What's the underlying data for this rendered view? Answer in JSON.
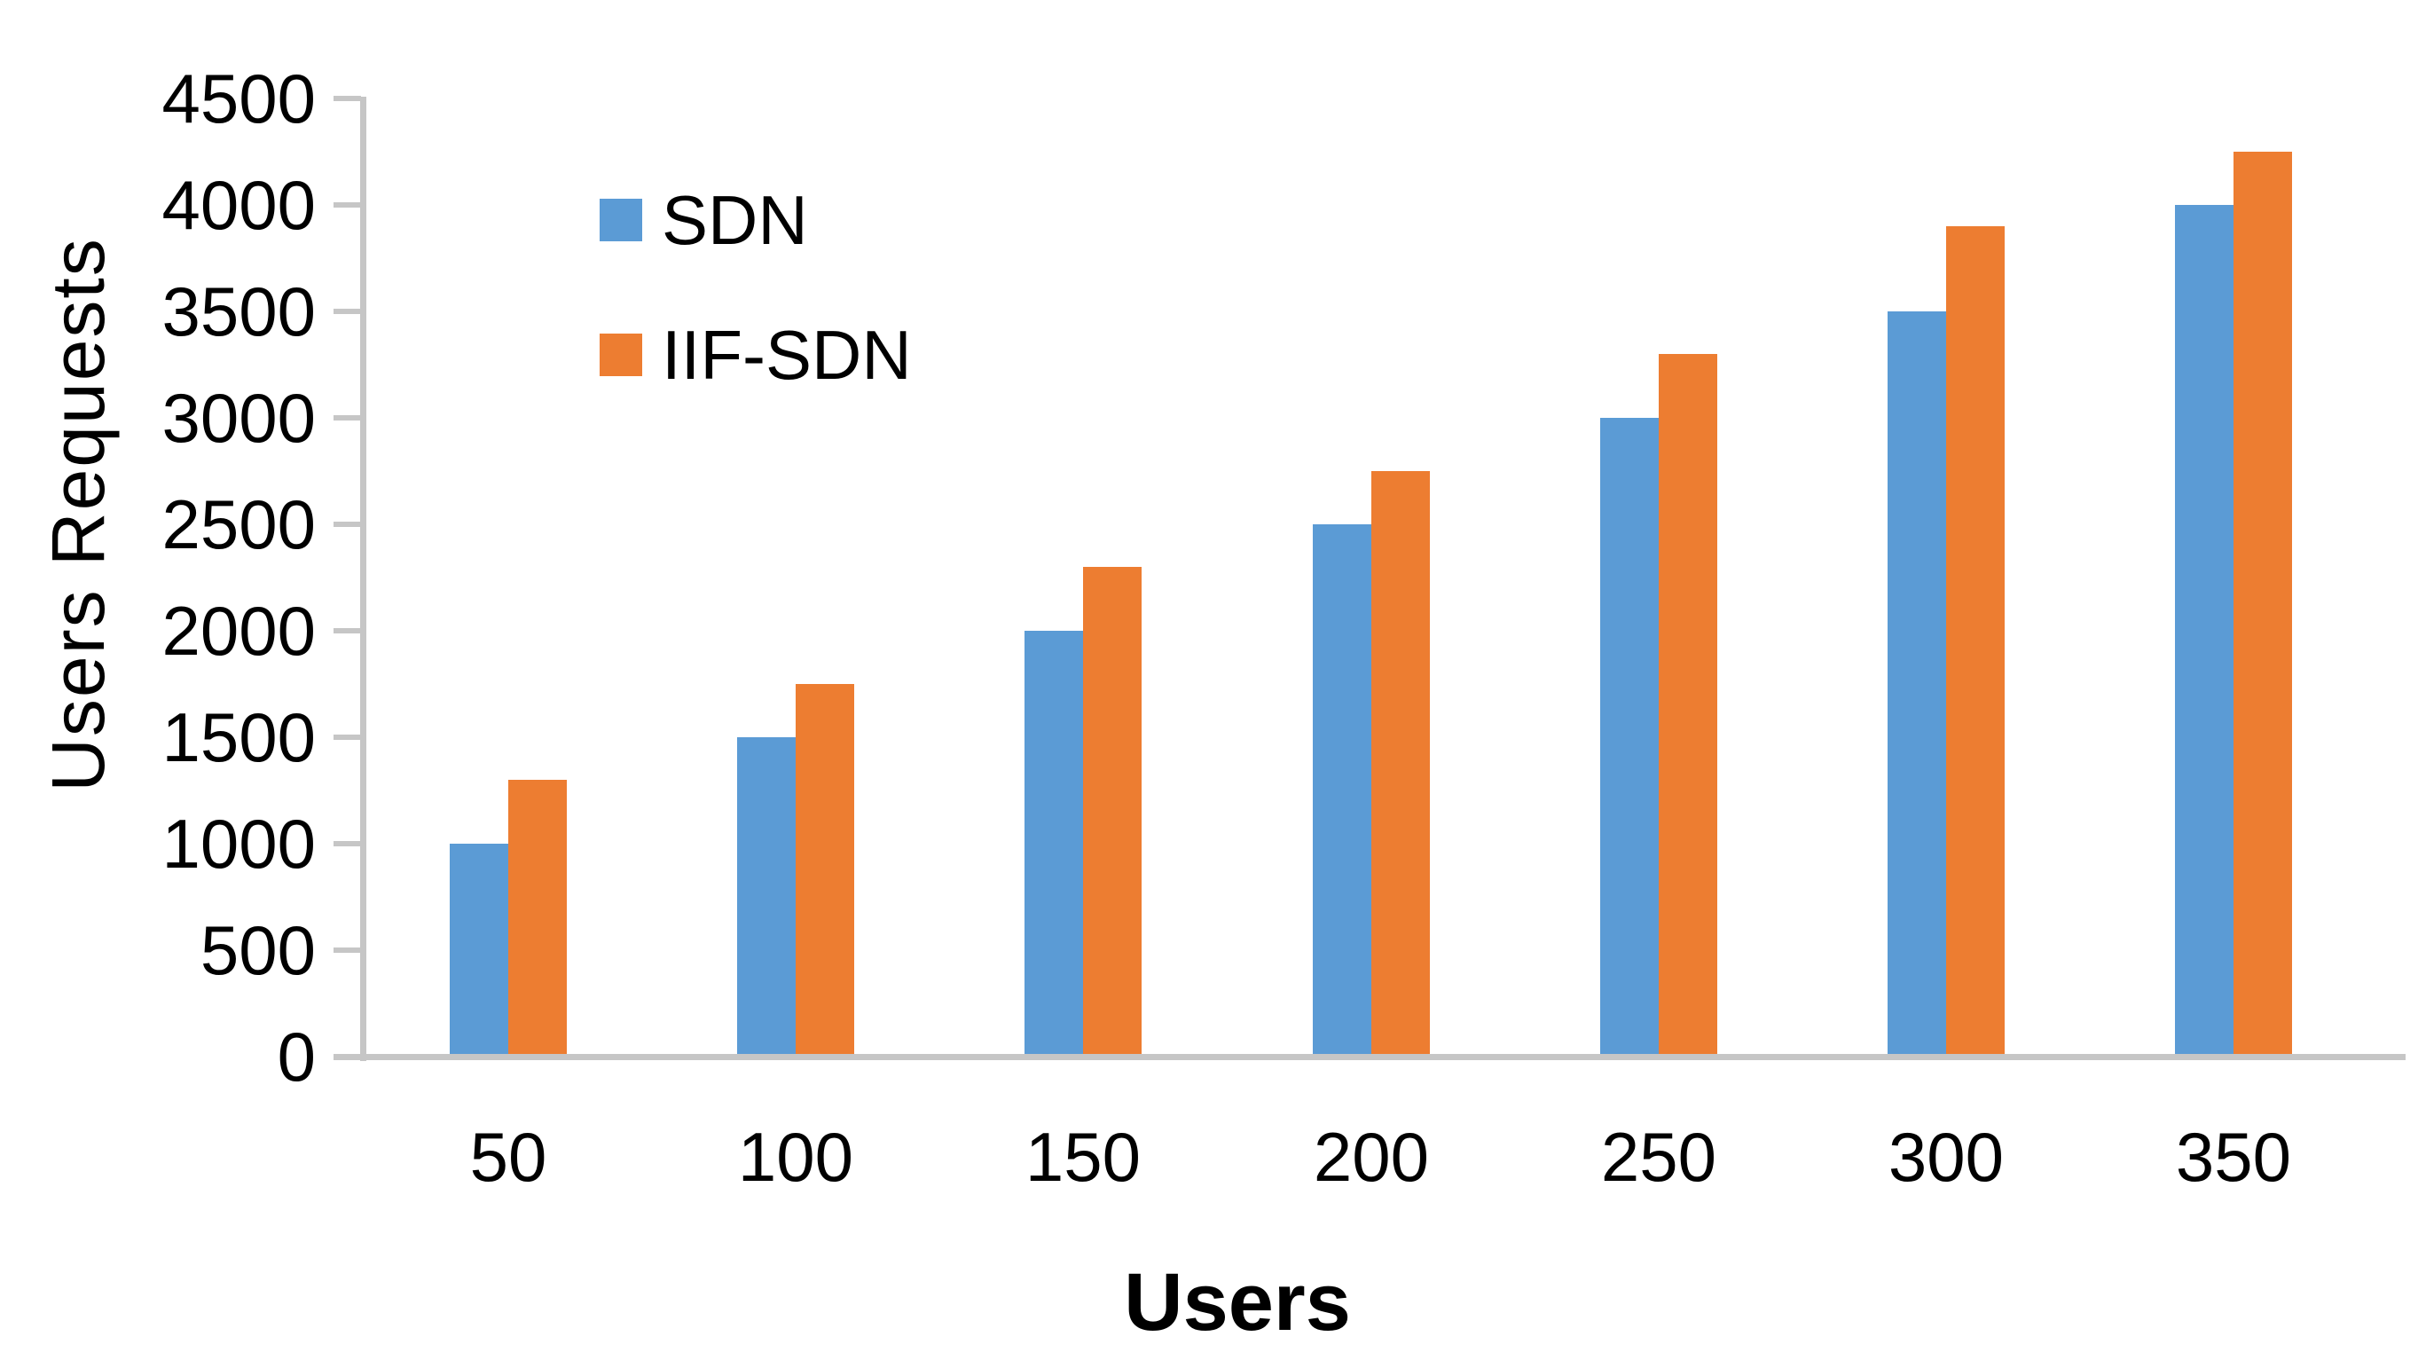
{
  "chart_data": {
    "type": "bar",
    "categories": [
      "50",
      "100",
      "150",
      "200",
      "250",
      "300",
      "350"
    ],
    "series": [
      {
        "name": "SDN",
        "color": "#5B9BD5",
        "values": [
          1000,
          1500,
          2000,
          2500,
          3000,
          3500,
          4000
        ]
      },
      {
        "name": "IIF-SDN",
        "color": "#ED7D31",
        "values": [
          1300,
          1750,
          2300,
          2750,
          3300,
          3900,
          4250
        ]
      }
    ],
    "title": "",
    "xlabel": "Users",
    "ylabel": "Users Requests",
    "ylim": [
      0,
      4500
    ],
    "ytick_step": 500,
    "ytick_labels": [
      "0",
      "500",
      "1000",
      "1500",
      "2000",
      "2500",
      "3000",
      "3500",
      "4000",
      "4500"
    ],
    "grid": false,
    "legend_position": "upper-left-inside",
    "colors": {
      "axis_line": "#C6C6C6",
      "text": "#000000",
      "background": "#FFFFFF"
    }
  }
}
